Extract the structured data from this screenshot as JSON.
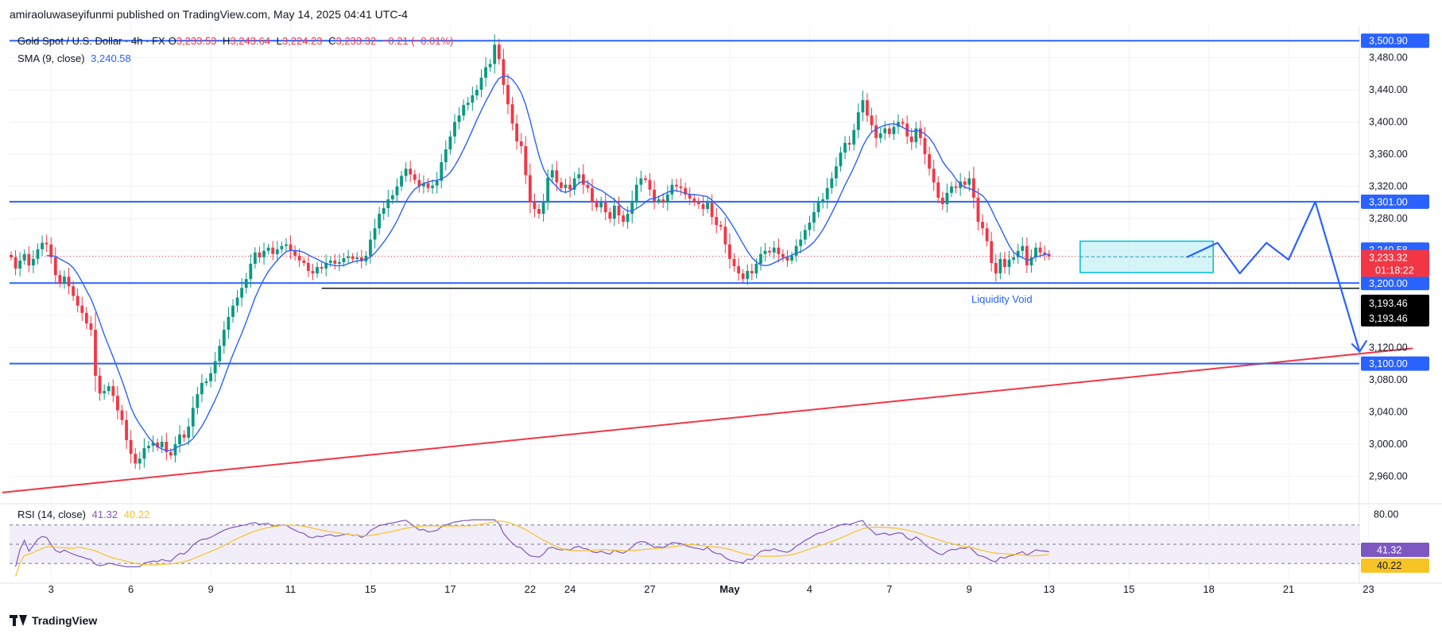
{
  "header": {
    "publisher_line": "amiraoluwaseyifunmi published on TradingView.com, May 14, 2025 04:41 UTC-4"
  },
  "legend": {
    "symbol": "Gold Spot / U.S. Dollar · 4h · FX",
    "o_label": "O",
    "o_value": "3,233.53",
    "h_label": "H",
    "h_value": "3,243.64",
    "l_label": "L",
    "l_value": "3,224.23",
    "c_label": "C",
    "c_value": "3,233.32",
    "change": "−0.21 (−0.01%)",
    "sma_label": "SMA (9, close)",
    "sma_value": "3,240.58",
    "rsi_label": "RSI (14, close)",
    "rsi_value": "41.32",
    "rsi_ma_value": "40.22"
  },
  "colors": {
    "up": "#089981",
    "down": "#f23645",
    "sma": "#2962ff",
    "level": "#2962ff",
    "trend": "#f23645",
    "box_fill": "#b2ebf2",
    "box_stroke": "#00bcd4",
    "rsi": "#7e57c2",
    "rsi_ma": "#f7c325",
    "rsi_band": "#ede7f6",
    "grid": "#f0f3fa",
    "axis_text": "#131722",
    "label_dark": "#000000"
  },
  "annotations": {
    "liquidity_void": "Liquidity Void"
  },
  "footer": {
    "brand": "TradingView"
  },
  "chart_data": {
    "type": "candlestick",
    "symbol": "XAUUSD",
    "interval": "4h",
    "ylim": [
      2930,
      3510
    ],
    "y_ticks": [
      2960,
      3000,
      3040,
      3080,
      3120,
      3160,
      3200,
      3240,
      3280,
      3320,
      3360,
      3400,
      3440,
      3480
    ],
    "y_tick_labels": [
      "2,960.00",
      "3,000.00",
      "3,040.00",
      "3,080.00",
      "3,120.00",
      "3,160.00",
      "3,200.00",
      "3,240.00",
      "3,280.00",
      "3,320.00",
      "3,360.00",
      "3,400.00",
      "3,440.00",
      "3,480.00"
    ],
    "x_tick_labels": [
      "3",
      "6",
      "9",
      "11",
      "15",
      "17",
      "22",
      "24",
      "27",
      "May",
      "4",
      "7",
      "9",
      "13",
      "15",
      "18",
      "21",
      "23"
    ],
    "x_tick_bars": [
      9,
      27,
      45,
      63,
      81,
      99,
      117,
      126,
      144,
      162,
      180,
      198,
      216,
      234,
      252,
      270,
      288,
      306
    ],
    "horizontal_levels": [
      {
        "price": 3500.9,
        "label": "3,500.90"
      },
      {
        "price": 3301.0,
        "label": "3,301.00"
      },
      {
        "price": 3200.0,
        "label": "3,200.00"
      },
      {
        "price": 3100.0,
        "label": "3,100.00"
      }
    ],
    "liquidity_void_line": {
      "price": 3193.46,
      "from_bar": 70,
      "label": "3,193.46"
    },
    "price_labels": [
      {
        "price": 3240.58,
        "text": "3,240.58",
        "kind": "sma"
      },
      {
        "price": 3233.32,
        "text": "3,233.32",
        "kind": "last"
      },
      {
        "countdown": "01:18:22"
      },
      {
        "price": 3193.46,
        "text": "3,193.46",
        "kind": "dark"
      },
      {
        "price": 3193.46,
        "text": "3,193.46",
        "kind": "dark2"
      }
    ],
    "trendline": {
      "from": {
        "bar": -2,
        "price": 2940
      },
      "to": {
        "bar": 316,
        "price": 3119
      }
    },
    "box": {
      "from_bar": 241,
      "to_bar": 271,
      "top": 3252,
      "bottom": 3213
    },
    "projection_path": [
      [
        265,
        3232
      ],
      [
        272,
        3250
      ],
      [
        277,
        3212
      ],
      [
        283,
        3250
      ],
      [
        288,
        3229
      ],
      [
        294,
        3301
      ],
      [
        304,
        3115
      ]
    ],
    "closes": [
      3232,
      3218,
      3228,
      3236,
      3222,
      3230,
      3242,
      3250,
      3248,
      3232,
      3210,
      3200,
      3208,
      3196,
      3184,
      3172,
      3163,
      3150,
      3142,
      3085,
      3063,
      3066,
      3072,
      3060,
      3042,
      3030,
      3005,
      2988,
      2976,
      2982,
      2995,
      2998,
      3002,
      2996,
      3003,
      2990,
      2986,
      3000,
      3012,
      3008,
      3022,
      3045,
      3062,
      3076,
      3078,
      3088,
      3103,
      3122,
      3142,
      3158,
      3172,
      3182,
      3194,
      3205,
      3224,
      3238,
      3232,
      3240,
      3244,
      3236,
      3242,
      3246,
      3248,
      3240,
      3234,
      3228,
      3225,
      3215,
      3212,
      3220,
      3218,
      3225,
      3228,
      3224,
      3226,
      3231,
      3233,
      3230,
      3232,
      3227,
      3234,
      3254,
      3268,
      3286,
      3293,
      3304,
      3309,
      3320,
      3333,
      3342,
      3335,
      3328,
      3320,
      3324,
      3318,
      3321,
      3327,
      3350,
      3366,
      3382,
      3400,
      3408,
      3421,
      3424,
      3433,
      3440,
      3455,
      3468,
      3472,
      3496,
      3478,
      3446,
      3422,
      3398,
      3376,
      3370,
      3334,
      3300,
      3292,
      3286,
      3300,
      3331,
      3340,
      3325,
      3318,
      3322,
      3316,
      3330,
      3335,
      3322,
      3318,
      3300,
      3294,
      3300,
      3288,
      3280,
      3296,
      3284,
      3276,
      3286,
      3302,
      3322,
      3330,
      3328,
      3316,
      3302,
      3304,
      3300,
      3310,
      3322,
      3320,
      3318,
      3310,
      3305,
      3300,
      3298,
      3292,
      3300,
      3282,
      3272,
      3270,
      3248,
      3230,
      3221,
      3212,
      3205,
      3215,
      3212,
      3224,
      3236,
      3240,
      3238,
      3244,
      3236,
      3232,
      3228,
      3234,
      3246,
      3254,
      3266,
      3275,
      3288,
      3300,
      3304,
      3318,
      3330,
      3345,
      3362,
      3374,
      3372,
      3390,
      3412,
      3427,
      3408,
      3396,
      3380,
      3386,
      3392,
      3385,
      3394,
      3400,
      3398,
      3382,
      3375,
      3392,
      3380,
      3360,
      3342,
      3325,
      3306,
      3298,
      3312,
      3320,
      3318,
      3326,
      3322,
      3330,
      3306,
      3276,
      3268,
      3252,
      3225,
      3212,
      3230,
      3220,
      3229,
      3232,
      3240,
      3246,
      3222,
      3232,
      3244,
      3238,
      3236,
      3233
    ],
    "sma_value": 3240.58,
    "rsi": {
      "length": 14,
      "upper": 80,
      "middle": 50,
      "lower": 20,
      "y_ticks": [
        80,
        50
      ],
      "y_tick_labels": [
        "80.00"
      ],
      "last": 41.32,
      "ma_last": 40.22
    }
  }
}
